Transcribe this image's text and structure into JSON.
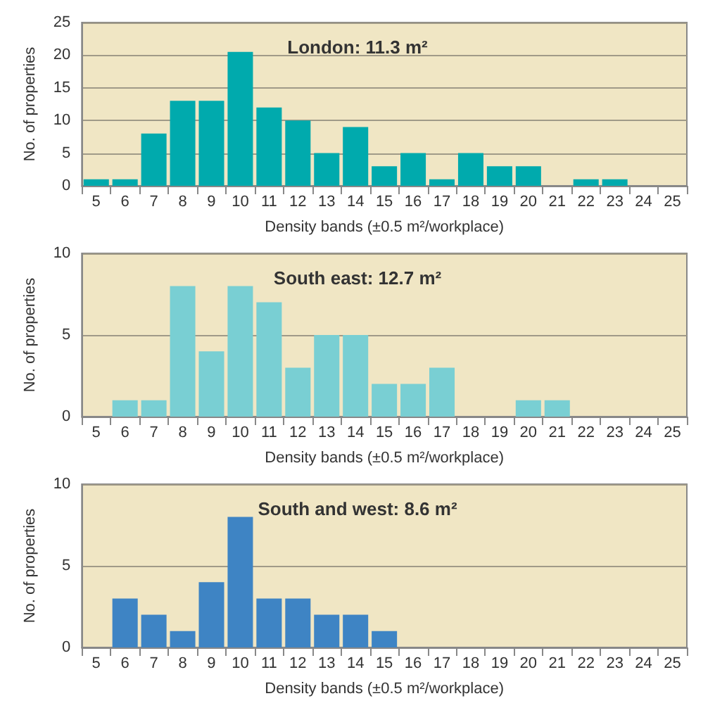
{
  "chart_data": [
    {
      "type": "bar",
      "title": "London: 11.3 m²",
      "xlabel": "Density bands (±0.5 m²/workplace)",
      "ylabel": "No. of properties",
      "categories": [
        "5",
        "6",
        "7",
        "8",
        "9",
        "10",
        "11",
        "12",
        "13",
        "14",
        "15",
        "16",
        "17",
        "18",
        "19",
        "20",
        "21",
        "22",
        "23",
        "24",
        "25"
      ],
      "series": [
        {
          "color": "#00aaad",
          "values": [
            1,
            1,
            8,
            13,
            13,
            20.5,
            12,
            10,
            5,
            9,
            3,
            5,
            1,
            5,
            3,
            3,
            0,
            1,
            1,
            0,
            0
          ]
        }
      ],
      "ylim": [
        0,
        25
      ],
      "yticks": [
        0,
        5,
        10,
        15,
        20,
        25
      ],
      "grid": "y"
    },
    {
      "type": "bar",
      "title": "South east: 12.7 m²",
      "xlabel": "Density bands (±0.5 m²/workplace)",
      "ylabel": "No. of properties",
      "categories": [
        "5",
        "6",
        "7",
        "8",
        "9",
        "10",
        "11",
        "12",
        "13",
        "14",
        "15",
        "16",
        "17",
        "18",
        "19",
        "20",
        "21",
        "22",
        "23",
        "24",
        "25"
      ],
      "series": [
        {
          "color": "#79cfd3",
          "values": [
            0,
            1,
            1,
            8,
            4,
            8,
            7,
            3,
            5,
            5,
            2,
            2,
            3,
            0,
            0,
            1,
            1,
            0,
            0,
            0,
            0
          ]
        }
      ],
      "ylim": [
        0,
        10
      ],
      "yticks": [
        0,
        5,
        10
      ],
      "grid": "y"
    },
    {
      "type": "bar",
      "title": "South and west: 8.6 m²",
      "xlabel": "Density bands (±0.5 m²/workplace)",
      "ylabel": "No. of properties",
      "categories": [
        "5",
        "6",
        "7",
        "8",
        "9",
        "10",
        "11",
        "12",
        "13",
        "14",
        "15",
        "16",
        "17",
        "18",
        "19",
        "20",
        "21",
        "22",
        "23",
        "24",
        "25"
      ],
      "series": [
        {
          "color": "#3e84c4",
          "values": [
            0,
            3,
            2,
            1,
            4,
            8,
            3,
            3,
            2,
            2,
            1,
            0,
            0,
            0,
            0,
            0,
            0,
            0,
            0,
            0,
            0
          ]
        }
      ],
      "ylim": [
        0,
        10
      ],
      "yticks": [
        0,
        5,
        10
      ],
      "grid": "y"
    }
  ]
}
